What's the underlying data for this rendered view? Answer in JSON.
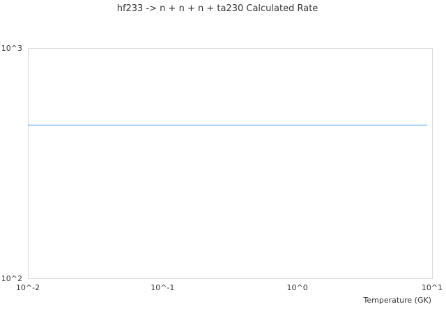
{
  "chart_data": {
    "type": "line",
    "title": "hf233 -> n + n + n + ta230 Calculated Rate",
    "xlabel": "Temperature (GK)",
    "ylabel": "",
    "xscale": "log",
    "yscale": "log",
    "xlim": [
      0.01,
      10
    ],
    "ylim": [
      100,
      1000
    ],
    "xticks": [
      {
        "value": 0.01,
        "label": "10^-2"
      },
      {
        "value": 0.1,
        "label": "10^-1"
      },
      {
        "value": 1,
        "label": "10^0"
      },
      {
        "value": 10,
        "label": "10^1"
      }
    ],
    "yticks": [
      {
        "value": 100,
        "label": "10^2"
      },
      {
        "value": 1000,
        "label": "10^3"
      }
    ],
    "grid": false,
    "legend": "none",
    "series": [
      {
        "color": "#5aaaf0",
        "x": [
          0.01,
          0.1,
          1,
          9.2
        ],
        "y": [
          462,
          462,
          462,
          462
        ]
      }
    ]
  }
}
